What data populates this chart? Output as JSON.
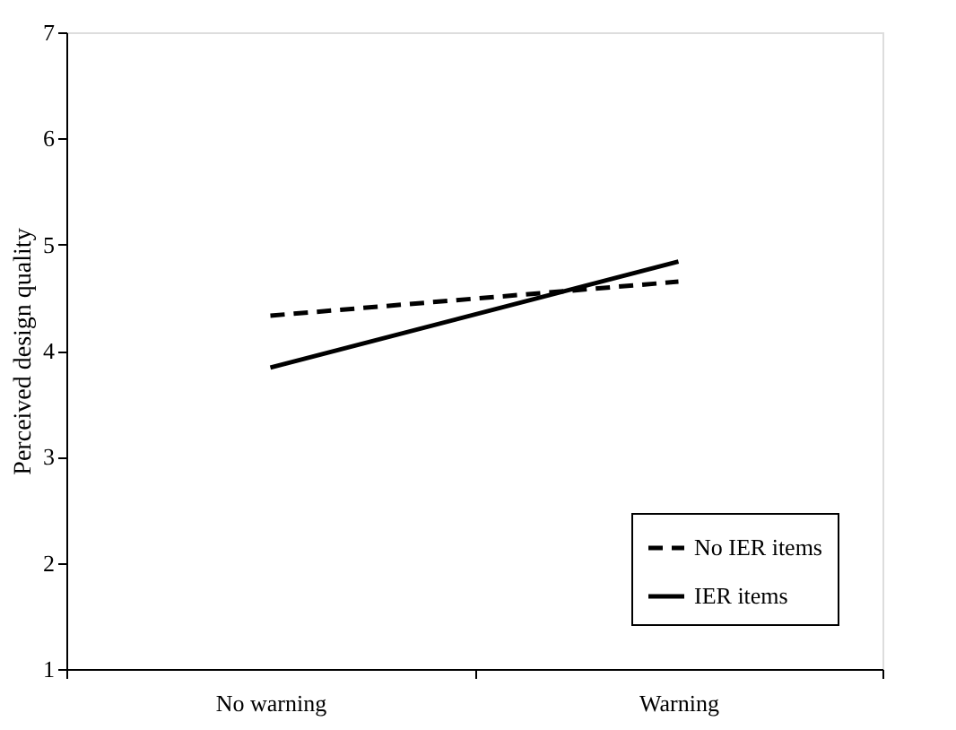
{
  "chart_data": {
    "type": "line",
    "ylabel": "Perceived design quality",
    "categories": [
      "No warning",
      "Warning"
    ],
    "series": [
      {
        "name": "No IER items",
        "color": "#000000",
        "line_style": "dashed",
        "values": [
          4.33,
          4.65
        ]
      },
      {
        "name": "IER items",
        "color": "#000000",
        "line_style": "solid",
        "values": [
          3.84,
          4.84
        ]
      }
    ],
    "ylim": [
      1,
      7
    ],
    "yticks": [
      1,
      2,
      3,
      4,
      5,
      6,
      7
    ],
    "grid": false,
    "legend": "bottom right",
    "marker": "none"
  }
}
